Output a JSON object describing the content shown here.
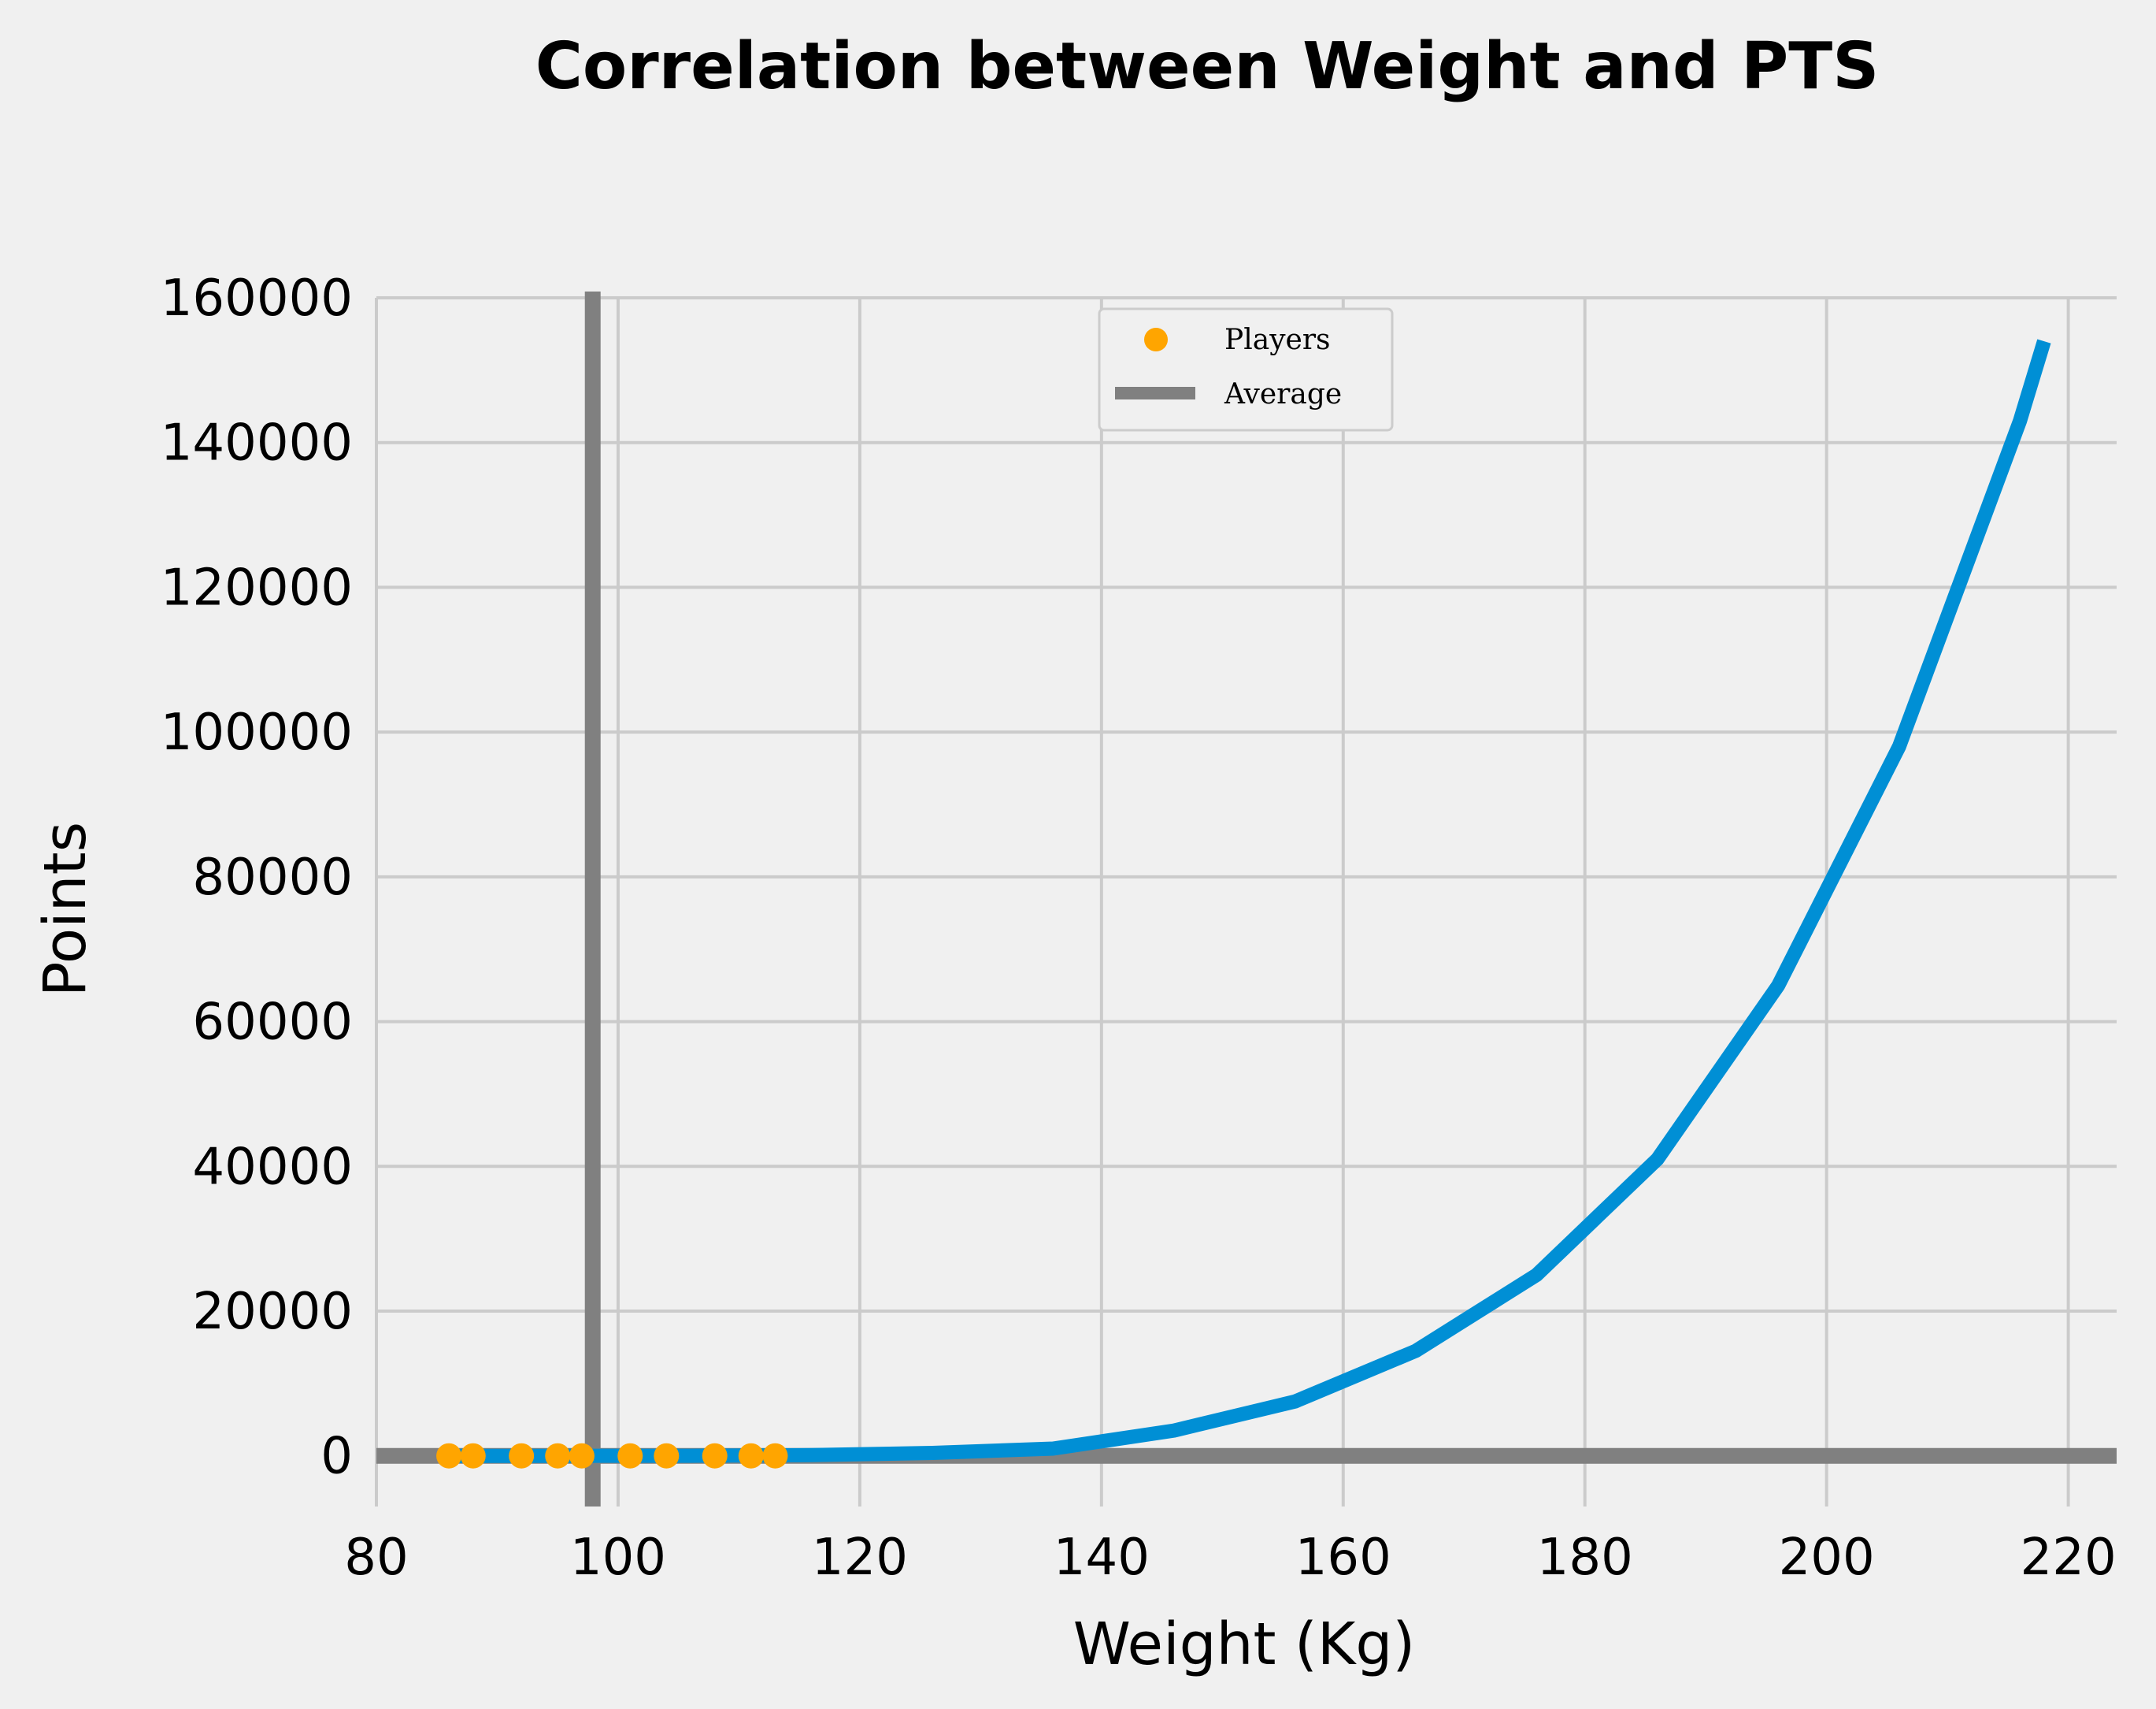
{
  "chart_data": {
    "type": "scatter",
    "title": "Correlation between Weight and PTS",
    "xlabel": "Weight (Kg)",
    "ylabel": "Points",
    "xlim": [
      80,
      224
    ],
    "ylim": [
      -7000,
      160000
    ],
    "x_ticks": [
      "80",
      "100",
      "120",
      "140",
      "160",
      "180",
      "200",
      "220"
    ],
    "y_ticks": [
      "0",
      "20000",
      "40000",
      "60000",
      "80000",
      "100000",
      "120000",
      "140000",
      "160000"
    ],
    "grid": true,
    "legend_position": "top-center",
    "series": [
      {
        "name": "Players",
        "kind": "scatter",
        "color": "#ffa500",
        "x": [
          86,
          88,
          92,
          95,
          97,
          101,
          104,
          108,
          111,
          113
        ],
        "y": [
          0,
          0,
          0,
          0,
          0,
          0,
          0,
          0,
          0,
          0
        ]
      },
      {
        "name": "Average",
        "kind": "reference-lines",
        "color": "#808080",
        "x_value": 97.9,
        "y_value": 0
      },
      {
        "kind": "line",
        "color": "#008fd5",
        "x": [
          86,
          96,
          106,
          116,
          126,
          136,
          146,
          156,
          166,
          176,
          186,
          196,
          206,
          216,
          218
        ],
        "y": [
          0,
          0,
          10,
          100,
          400,
          1000,
          3500,
          7500,
          14500,
          25000,
          41000,
          65000,
          98000,
          143000,
          154000
        ]
      }
    ]
  }
}
